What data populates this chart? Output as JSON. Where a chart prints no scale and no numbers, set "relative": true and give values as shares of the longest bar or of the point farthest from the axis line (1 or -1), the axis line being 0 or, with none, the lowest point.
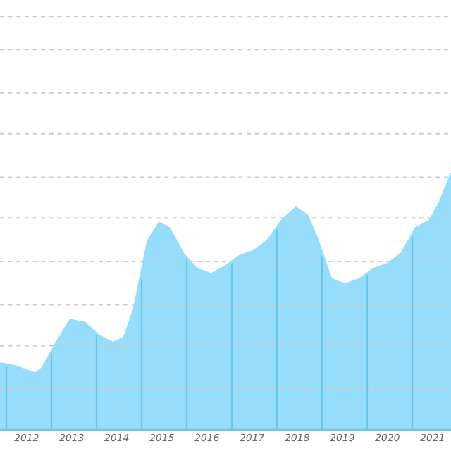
{
  "chart_data": {
    "type": "area",
    "relative": true,
    "color": "#96dcfb",
    "x": [
      2011.41,
      2011.72,
      2012.03,
      2012.19,
      2012.34,
      2012.66,
      2012.97,
      2013.28,
      2013.59,
      2013.91,
      2014.16,
      2014.38,
      2014.69,
      2014.94,
      2015.16,
      2015.47,
      2015.78,
      2016.09,
      2016.41,
      2016.72,
      2017.03,
      2017.34,
      2017.66,
      2017.97,
      2018.22,
      2018.44,
      2018.75,
      2019.06,
      2019.38,
      2019.69,
      2020.0,
      2020.31,
      2020.63,
      2020.94,
      2021.16,
      2021.41
    ],
    "values": [
      0.26,
      0.25,
      0.23,
      0.22,
      0.24,
      0.34,
      0.43,
      0.42,
      0.37,
      0.34,
      0.36,
      0.47,
      0.74,
      0.81,
      0.79,
      0.69,
      0.63,
      0.61,
      0.64,
      0.68,
      0.7,
      0.74,
      0.82,
      0.87,
      0.84,
      0.75,
      0.59,
      0.57,
      0.59,
      0.63,
      0.65,
      0.69,
      0.79,
      0.82,
      0.89,
      1
    ],
    "xlim": [
      2011.41,
      2021.41
    ],
    "xticks": [
      2012,
      2013,
      2014,
      2015,
      2016,
      2017,
      2018,
      2019,
      2020,
      2021
    ],
    "ref_lines": [
      {
        "axis": "y",
        "value": 0.16,
        "color": "#cccccc",
        "line_style": "dashed"
      },
      {
        "axis": "y",
        "value": 0.33,
        "color": "#cccccc",
        "line_style": "dashed"
      },
      {
        "axis": "y",
        "value": 0.49,
        "color": "#cccccc",
        "line_style": "dashed"
      },
      {
        "axis": "y",
        "value": 0.66,
        "color": "#cccccc",
        "line_style": "dashed"
      },
      {
        "axis": "y",
        "value": 0.83,
        "color": "#cccccc",
        "line_style": "dashed"
      },
      {
        "axis": "y",
        "value": 0.99,
        "color": "#cccccc",
        "line_style": "dashed"
      },
      {
        "axis": "y",
        "value": 1.16,
        "color": "#cccccc",
        "line_style": "dashed"
      },
      {
        "axis": "y",
        "value": 1.32,
        "color": "#cccccc",
        "line_style": "dashed"
      },
      {
        "axis": "y",
        "value": 1.49,
        "color": "#cccccc",
        "line_style": "dashed"
      },
      {
        "axis": "y",
        "value": 1.62,
        "color": "#cccccc",
        "line_style": "dashed"
      },
      {
        "axis": "x",
        "value": 2011.55,
        "color": "#6cc6ea",
        "line_style": "solid"
      },
      {
        "axis": "x",
        "value": 2012.55,
        "color": "#6cc6ea",
        "line_style": "solid"
      },
      {
        "axis": "x",
        "value": 2013.55,
        "color": "#6cc6ea",
        "line_style": "solid"
      },
      {
        "axis": "x",
        "value": 2014.55,
        "color": "#6cc6ea",
        "line_style": "solid"
      },
      {
        "axis": "x",
        "value": 2015.55,
        "color": "#6cc6ea",
        "line_style": "solid"
      },
      {
        "axis": "x",
        "value": 2016.55,
        "color": "#6cc6ea",
        "line_style": "solid"
      },
      {
        "axis": "x",
        "value": 2017.55,
        "color": "#6cc6ea",
        "line_style": "solid"
      },
      {
        "axis": "x",
        "value": 2018.55,
        "color": "#6cc6ea",
        "line_style": "solid"
      },
      {
        "axis": "x",
        "value": 2019.55,
        "color": "#6cc6ea",
        "line_style": "solid"
      },
      {
        "axis": "x",
        "value": 2020.55,
        "color": "#6cc6ea",
        "line_style": "solid"
      }
    ]
  }
}
